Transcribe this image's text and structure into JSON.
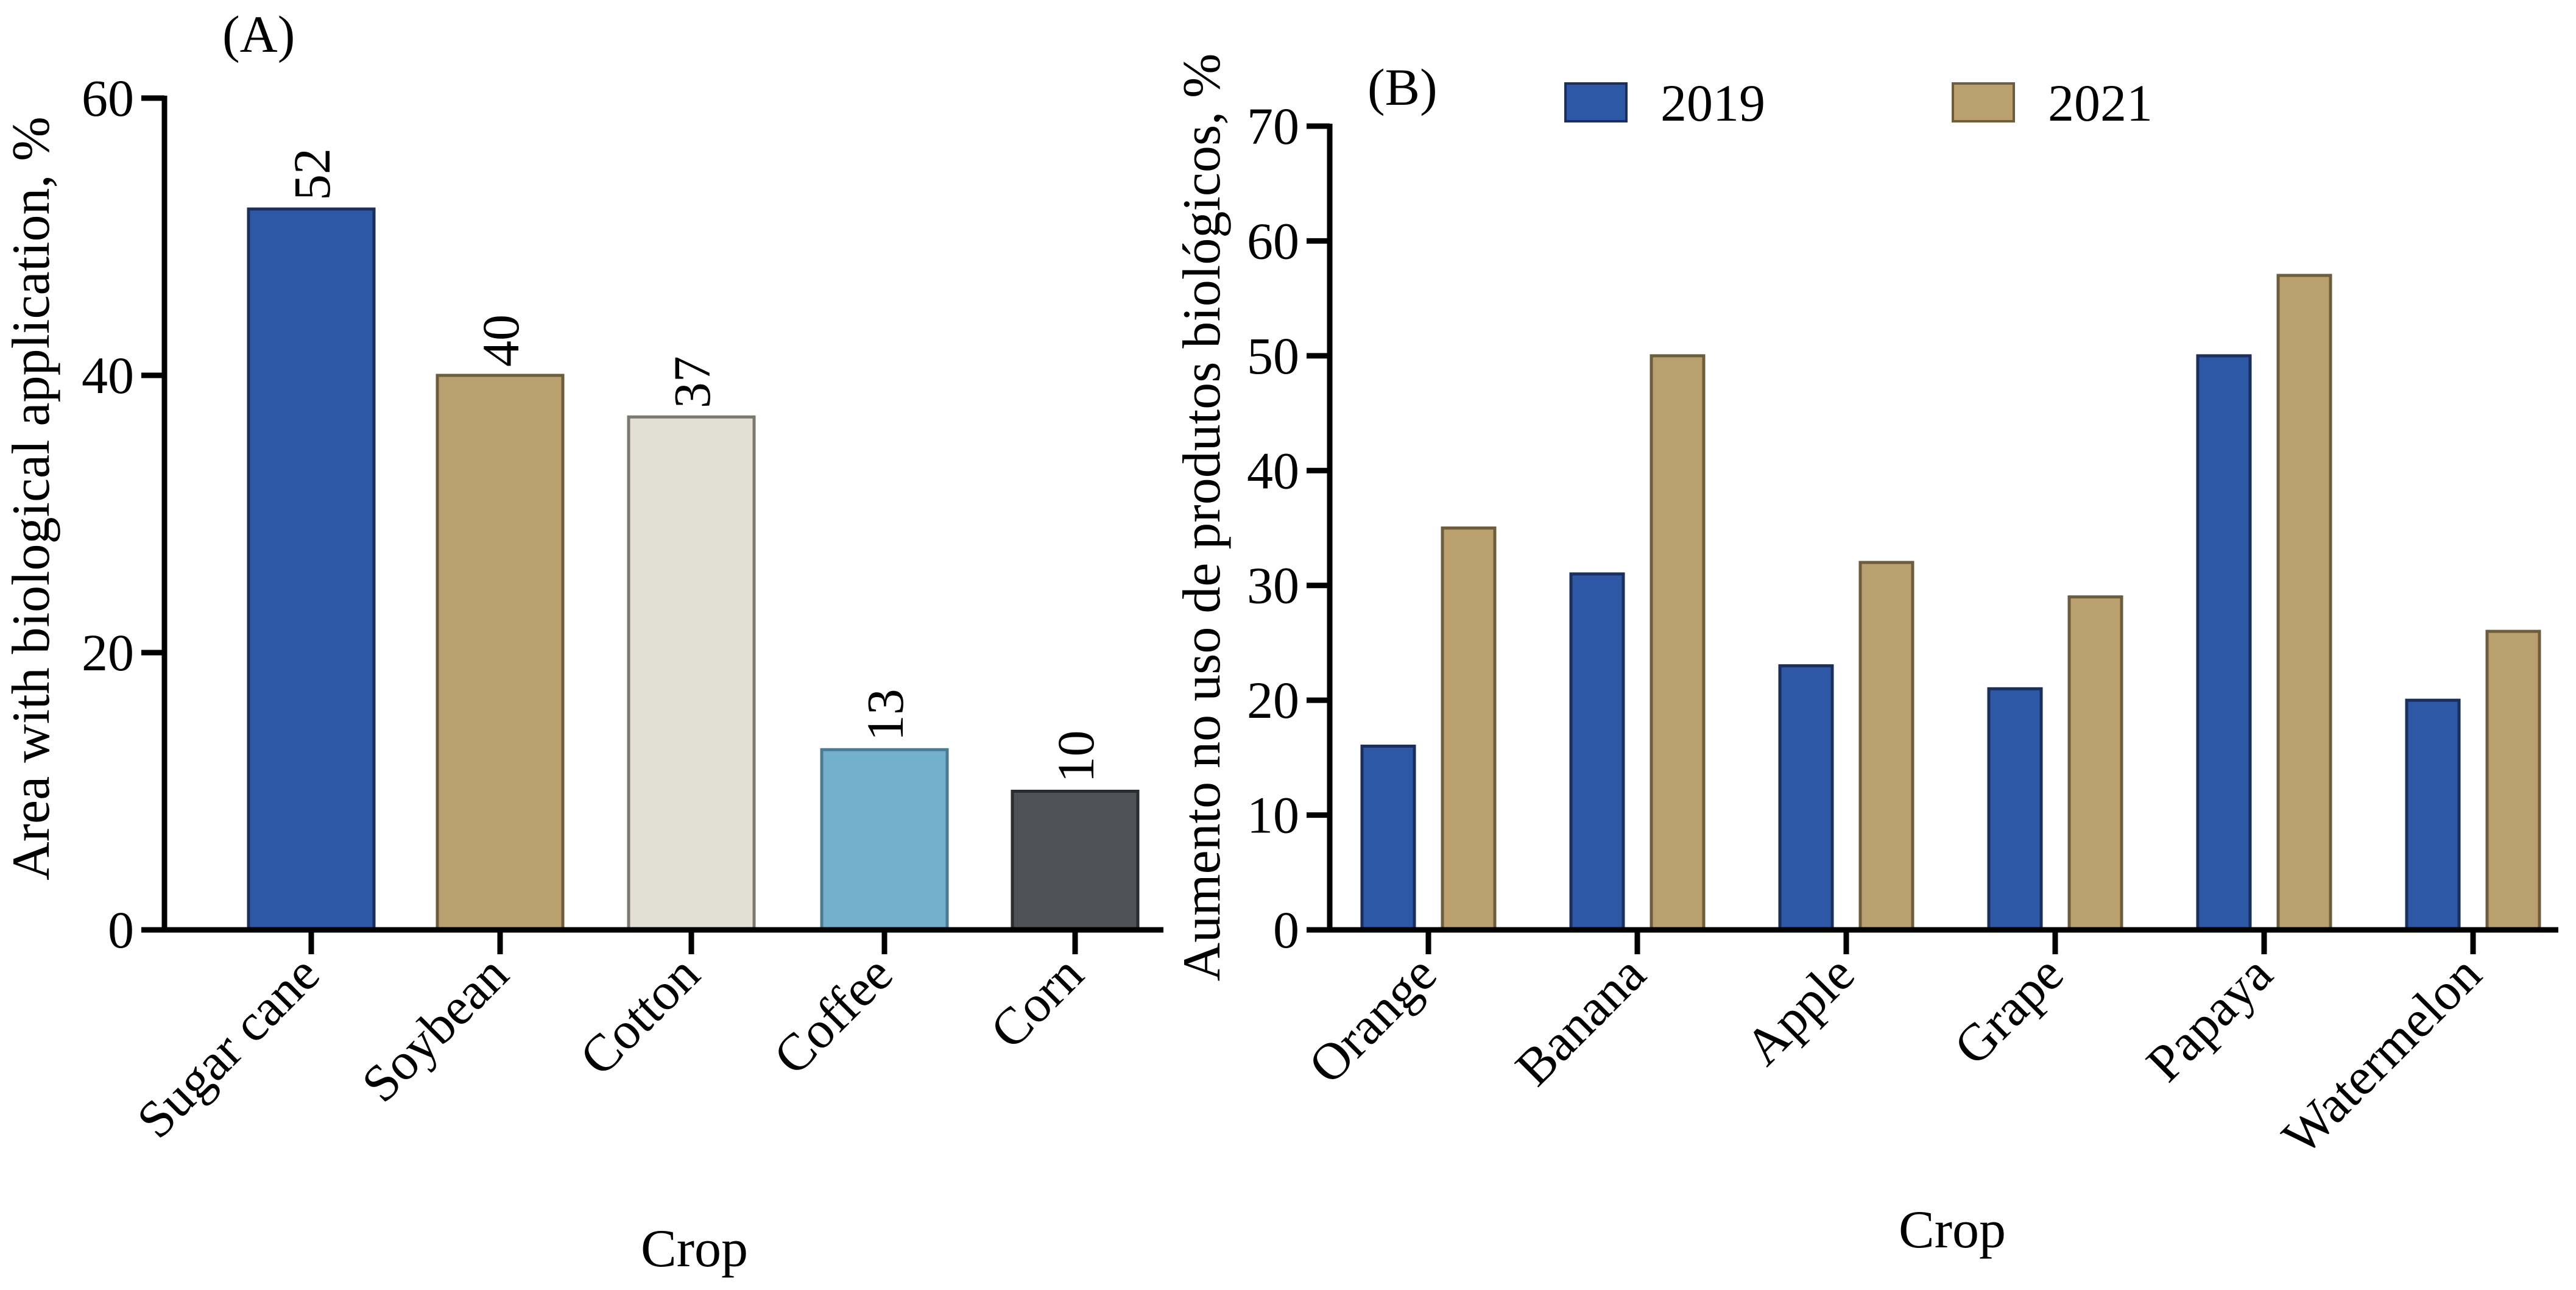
{
  "colors": {
    "blue": "#2e58a6",
    "tan": "#b9a06e",
    "light": "#e2dfd5",
    "skyblue": "#73b0cc",
    "dark": "#4f5156",
    "axis": "#000000"
  },
  "chart_data": [
    {
      "panel_label": "(A)",
      "type": "bar",
      "categories": [
        "Sugar cane",
        "Soybean",
        "Cotton",
        "Coffee",
        "Corn"
      ],
      "values": [
        52,
        40,
        37,
        13,
        10
      ],
      "value_labels": [
        "52",
        "40",
        "37",
        "13",
        "10"
      ],
      "bar_colors": [
        "#2e58a6",
        "#b9a06e",
        "#e2dfd5",
        "#73b0cc",
        "#4f5156"
      ],
      "bar_strokes": [
        "#1a2f5c",
        "#6e5d3c",
        "#7a786f",
        "#4a7b92",
        "#2b2c2f"
      ],
      "xlabel": "Crop",
      "ylabel": "Area with biological application, %",
      "ylim": [
        0,
        60
      ],
      "yticks": [
        0,
        20,
        40,
        60
      ],
      "ytick_labels": [
        "0",
        "20",
        "40",
        "60"
      ],
      "grid": false
    },
    {
      "panel_label": "(B)",
      "type": "bar",
      "categories": [
        "Orange",
        "Banana",
        "Apple",
        "Grape",
        "Papaya",
        "Watermelon"
      ],
      "series": [
        {
          "name": "2019",
          "values": [
            16,
            31,
            23,
            21,
            50,
            20
          ],
          "color": "#2e58a6",
          "stroke": "#1a2f5c"
        },
        {
          "name": "2021",
          "values": [
            35,
            50,
            32,
            29,
            57,
            26
          ],
          "color": "#b9a06e",
          "stroke": "#6e5d3c"
        }
      ],
      "xlabel": "Crop",
      "ylabel": "Aumento no uso de produtos biológicos, %",
      "ylim": [
        0,
        70
      ],
      "yticks": [
        0,
        10,
        20,
        30,
        40,
        50,
        60,
        70
      ],
      "ytick_labels": [
        "0",
        "10",
        "20",
        "30",
        "40",
        "50",
        "60",
        "70"
      ],
      "legend_position": "top",
      "grid": false
    }
  ]
}
